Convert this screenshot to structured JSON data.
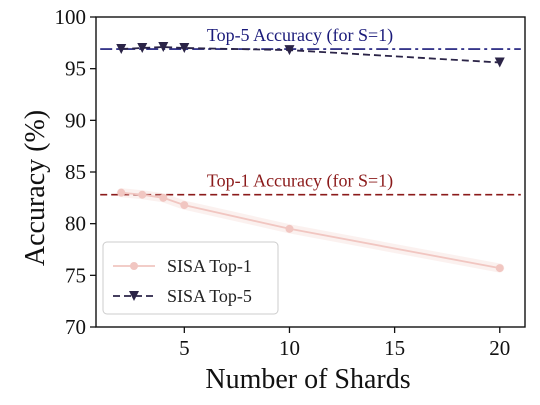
{
  "chart_data": {
    "type": "line",
    "title": "",
    "xlabel": "Number of Shards",
    "ylabel": "Accuracy (%)",
    "xlim": [
      0.8,
      21.2
    ],
    "ylim": [
      70,
      100
    ],
    "xticks": [
      5,
      10,
      15,
      20
    ],
    "yticks": [
      70,
      75,
      80,
      85,
      90,
      95,
      100
    ],
    "grid": false,
    "legend_position": "lower-left",
    "series": [
      {
        "name": "SISA Top-1",
        "color": "#f1c6c1",
        "marker": "circle",
        "linestyle": "solid",
        "x": [
          2,
          3,
          4,
          5,
          10,
          20
        ],
        "y": [
          83.0,
          82.8,
          82.5,
          81.8,
          79.5,
          75.7
        ]
      },
      {
        "name": "SISA Top-5",
        "color": "#2b2447",
        "marker": "triangle-down",
        "linestyle": "dashed",
        "x": [
          2,
          3,
          4,
          5,
          10,
          20
        ],
        "y": [
          96.9,
          97.0,
          97.1,
          97.0,
          96.8,
          95.6
        ]
      }
    ],
    "reference_lines": [
      {
        "label": "Top-5 Accuracy (for S=1)",
        "y": 96.9,
        "color": "#1a1a7a",
        "linestyle": "dashdot"
      },
      {
        "label": "Top-1 Accuracy (for S=1)",
        "y": 82.8,
        "color": "#8b1a1a",
        "linestyle": "dashed"
      }
    ]
  }
}
